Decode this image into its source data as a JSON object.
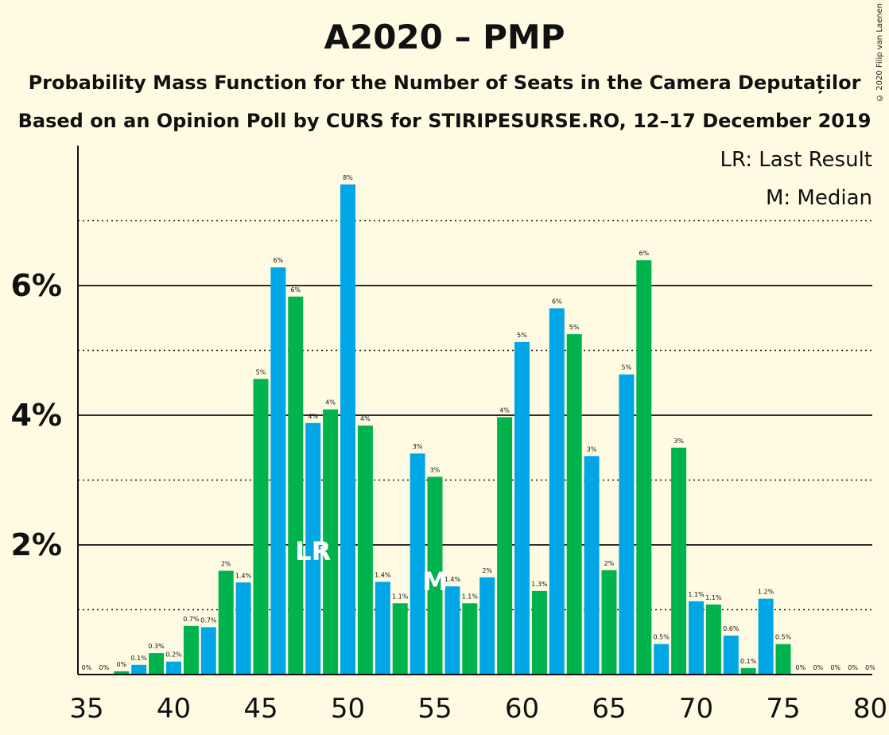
{
  "title": "A2020 – PMP",
  "subtitle1": "Probability Mass Function for the Number of Seats in the Camera Deputaților",
  "subtitle2": "Based on an Opinion Poll by CURS for STIRIPESURSE.RO, 12–17 December 2019",
  "copyright": "© 2020 Filip van Laenen",
  "legend": {
    "lr": "LR: Last Result",
    "m": "M: Median"
  },
  "chart_data": {
    "type": "bar",
    "x": [
      36,
      37,
      38,
      39,
      40,
      41,
      42,
      43,
      44,
      45,
      46,
      47,
      48,
      49,
      50,
      51,
      52,
      53,
      54,
      55,
      56,
      57,
      58,
      59,
      60,
      61,
      62,
      63,
      64,
      65,
      66,
      67,
      68,
      69,
      70,
      71,
      72,
      73,
      74,
      75,
      76,
      77,
      78,
      79,
      80
    ],
    "values": [
      0.0,
      0.05,
      0.15,
      0.33,
      0.2,
      0.75,
      0.73,
      1.6,
      1.42,
      4.56,
      6.28,
      5.83,
      3.88,
      4.09,
      7.56,
      3.84,
      1.43,
      1.1,
      3.41,
      3.05,
      1.36,
      1.1,
      1.5,
      3.97,
      5.13,
      1.29,
      5.65,
      5.25,
      3.37,
      1.61,
      4.63,
      6.39,
      0.47,
      3.5,
      1.13,
      1.08,
      0.6,
      0.1,
      1.17,
      0.47,
      0.0,
      0.0,
      0.0,
      0.0,
      0.0
    ],
    "value_labels": [
      "0%",
      "0%",
      "0.1%",
      "0.3%",
      "0.2%",
      "0.7%",
      "0.7%",
      "2%",
      "1.4%",
      "5%",
      "6%",
      "6%",
      "4%",
      "4%",
      "8%",
      "4%",
      "1.4%",
      "1.1%",
      "3%",
      "3%",
      "1.4%",
      "1.1%",
      "2%",
      "4%",
      "5%",
      "1.3%",
      "6%",
      "5%",
      "3%",
      "2%",
      "5%",
      "6%",
      "0.5%",
      "3%",
      "1.1%",
      "1.1%",
      "0.6%",
      "0.1%",
      "1.2%",
      "0.5%",
      "0%",
      "0%",
      "0%",
      "0%",
      "0%"
    ],
    "leading_label": {
      "x": 35,
      "label": "0%"
    },
    "xlim": [
      35,
      80
    ],
    "ylim": [
      0,
      8
    ],
    "x_ticks": [
      35,
      40,
      45,
      50,
      55,
      60,
      65,
      70,
      75,
      80
    ],
    "y_ticks": [
      2,
      4,
      6
    ],
    "y_tick_labels": [
      "2%",
      "4%",
      "6%"
    ],
    "grid": "solid lines at 2%, 4%, 6%; dotted lines at 1%, 3%, 5%, 7%",
    "last_result": {
      "x": 48,
      "label": "LR"
    },
    "median": {
      "x": 55,
      "label": "M"
    },
    "colors": {
      "green": "#00B34D",
      "blue": "#00A6E6",
      "text": "#111111",
      "background": "#FFFBE3"
    }
  }
}
